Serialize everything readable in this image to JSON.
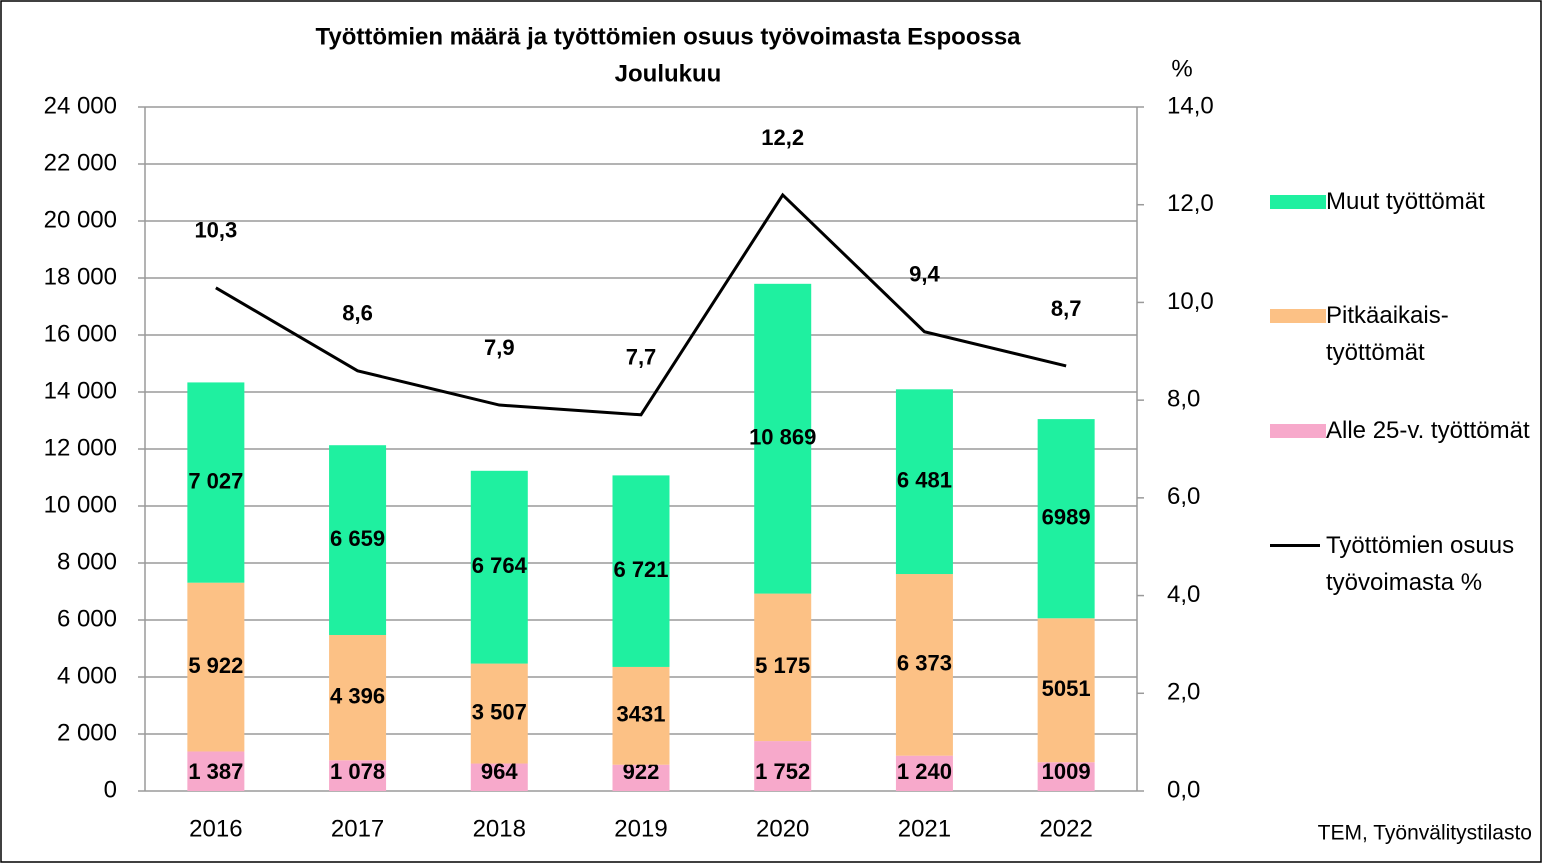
{
  "chart_data": {
    "type": "bar",
    "title": "Työttömien määrä ja työttömien osuus työvoimasta Espoossa",
    "subtitle": "Joulukuu",
    "y2_label": "%",
    "source": "TEM, Työnvälitystilasto",
    "stacked": true,
    "grid": true,
    "legend": "right",
    "categories": [
      "2016",
      "2017",
      "2018",
      "2019",
      "2020",
      "2021",
      "2022"
    ],
    "series": [
      {
        "name": "Alle 25-v. työttömät",
        "color": "#f7a9cb",
        "values": [
          1387,
          1078,
          964,
          922,
          1752,
          1240,
          1009
        ],
        "value_labels": [
          "1 387",
          "1 078",
          "964",
          "922",
          "1 752",
          "1 240",
          "1009"
        ]
      },
      {
        "name": "Pitkäaikais-työttömät",
        "color": "#fcc185",
        "values": [
          5922,
          4396,
          3507,
          3431,
          5175,
          6373,
          5051
        ],
        "value_labels": [
          "5 922",
          "4 396",
          "3 507",
          "3431",
          "5 175",
          "6 373",
          "5051"
        ]
      },
      {
        "name": "Muut työttömät",
        "color": "#1ff0a0",
        "values": [
          7027,
          6659,
          6764,
          6721,
          10869,
          6481,
          6989
        ],
        "value_labels": [
          "7 027",
          "6 659",
          "6 764",
          "6 721",
          "10 869",
          "6 481",
          "6989"
        ]
      },
      {
        "name": "Työttömien osuus työvoimasta %",
        "type": "line",
        "axis": "y2",
        "color": "#000000",
        "values": [
          10.3,
          8.6,
          7.9,
          7.7,
          12.2,
          9.4,
          8.7
        ],
        "value_labels": [
          "10,3",
          "8,6",
          "7,9",
          "7,7",
          "12,2",
          "9,4",
          "8,7"
        ]
      }
    ],
    "ylim": [
      0,
      24000
    ],
    "yticks": [
      0,
      {
        "value": 2000,
        "label": "2 000"
      },
      {
        "value": 4000,
        "label": "4 000"
      },
      {
        "value": 6000,
        "label": "6 000"
      },
      {
        "value": 8000,
        "label": "8 000"
      },
      {
        "value": 10000,
        "label": "10 000"
      },
      {
        "value": 12000,
        "label": "12 000"
      },
      {
        "value": 14000,
        "label": "14 000"
      },
      {
        "value": 16000,
        "label": "16 000"
      },
      {
        "value": 18000,
        "label": "18 000"
      },
      {
        "value": 20000,
        "label": "20 000"
      },
      {
        "value": 22000,
        "label": "22 000"
      },
      {
        "value": 24000,
        "label": "24 000"
      }
    ],
    "y2lim": [
      0,
      14
    ],
    "y2ticks": [
      {
        "value": 0,
        "label": "0,0"
      },
      {
        "value": 2,
        "label": "2,0"
      },
      {
        "value": 4,
        "label": "4,0"
      },
      {
        "value": 6,
        "label": "6,0"
      },
      {
        "value": 8,
        "label": "8,0"
      },
      {
        "value": 10,
        "label": "10,0"
      },
      {
        "value": 12,
        "label": "12,0"
      },
      {
        "value": 14,
        "label": "14,0"
      }
    ]
  }
}
